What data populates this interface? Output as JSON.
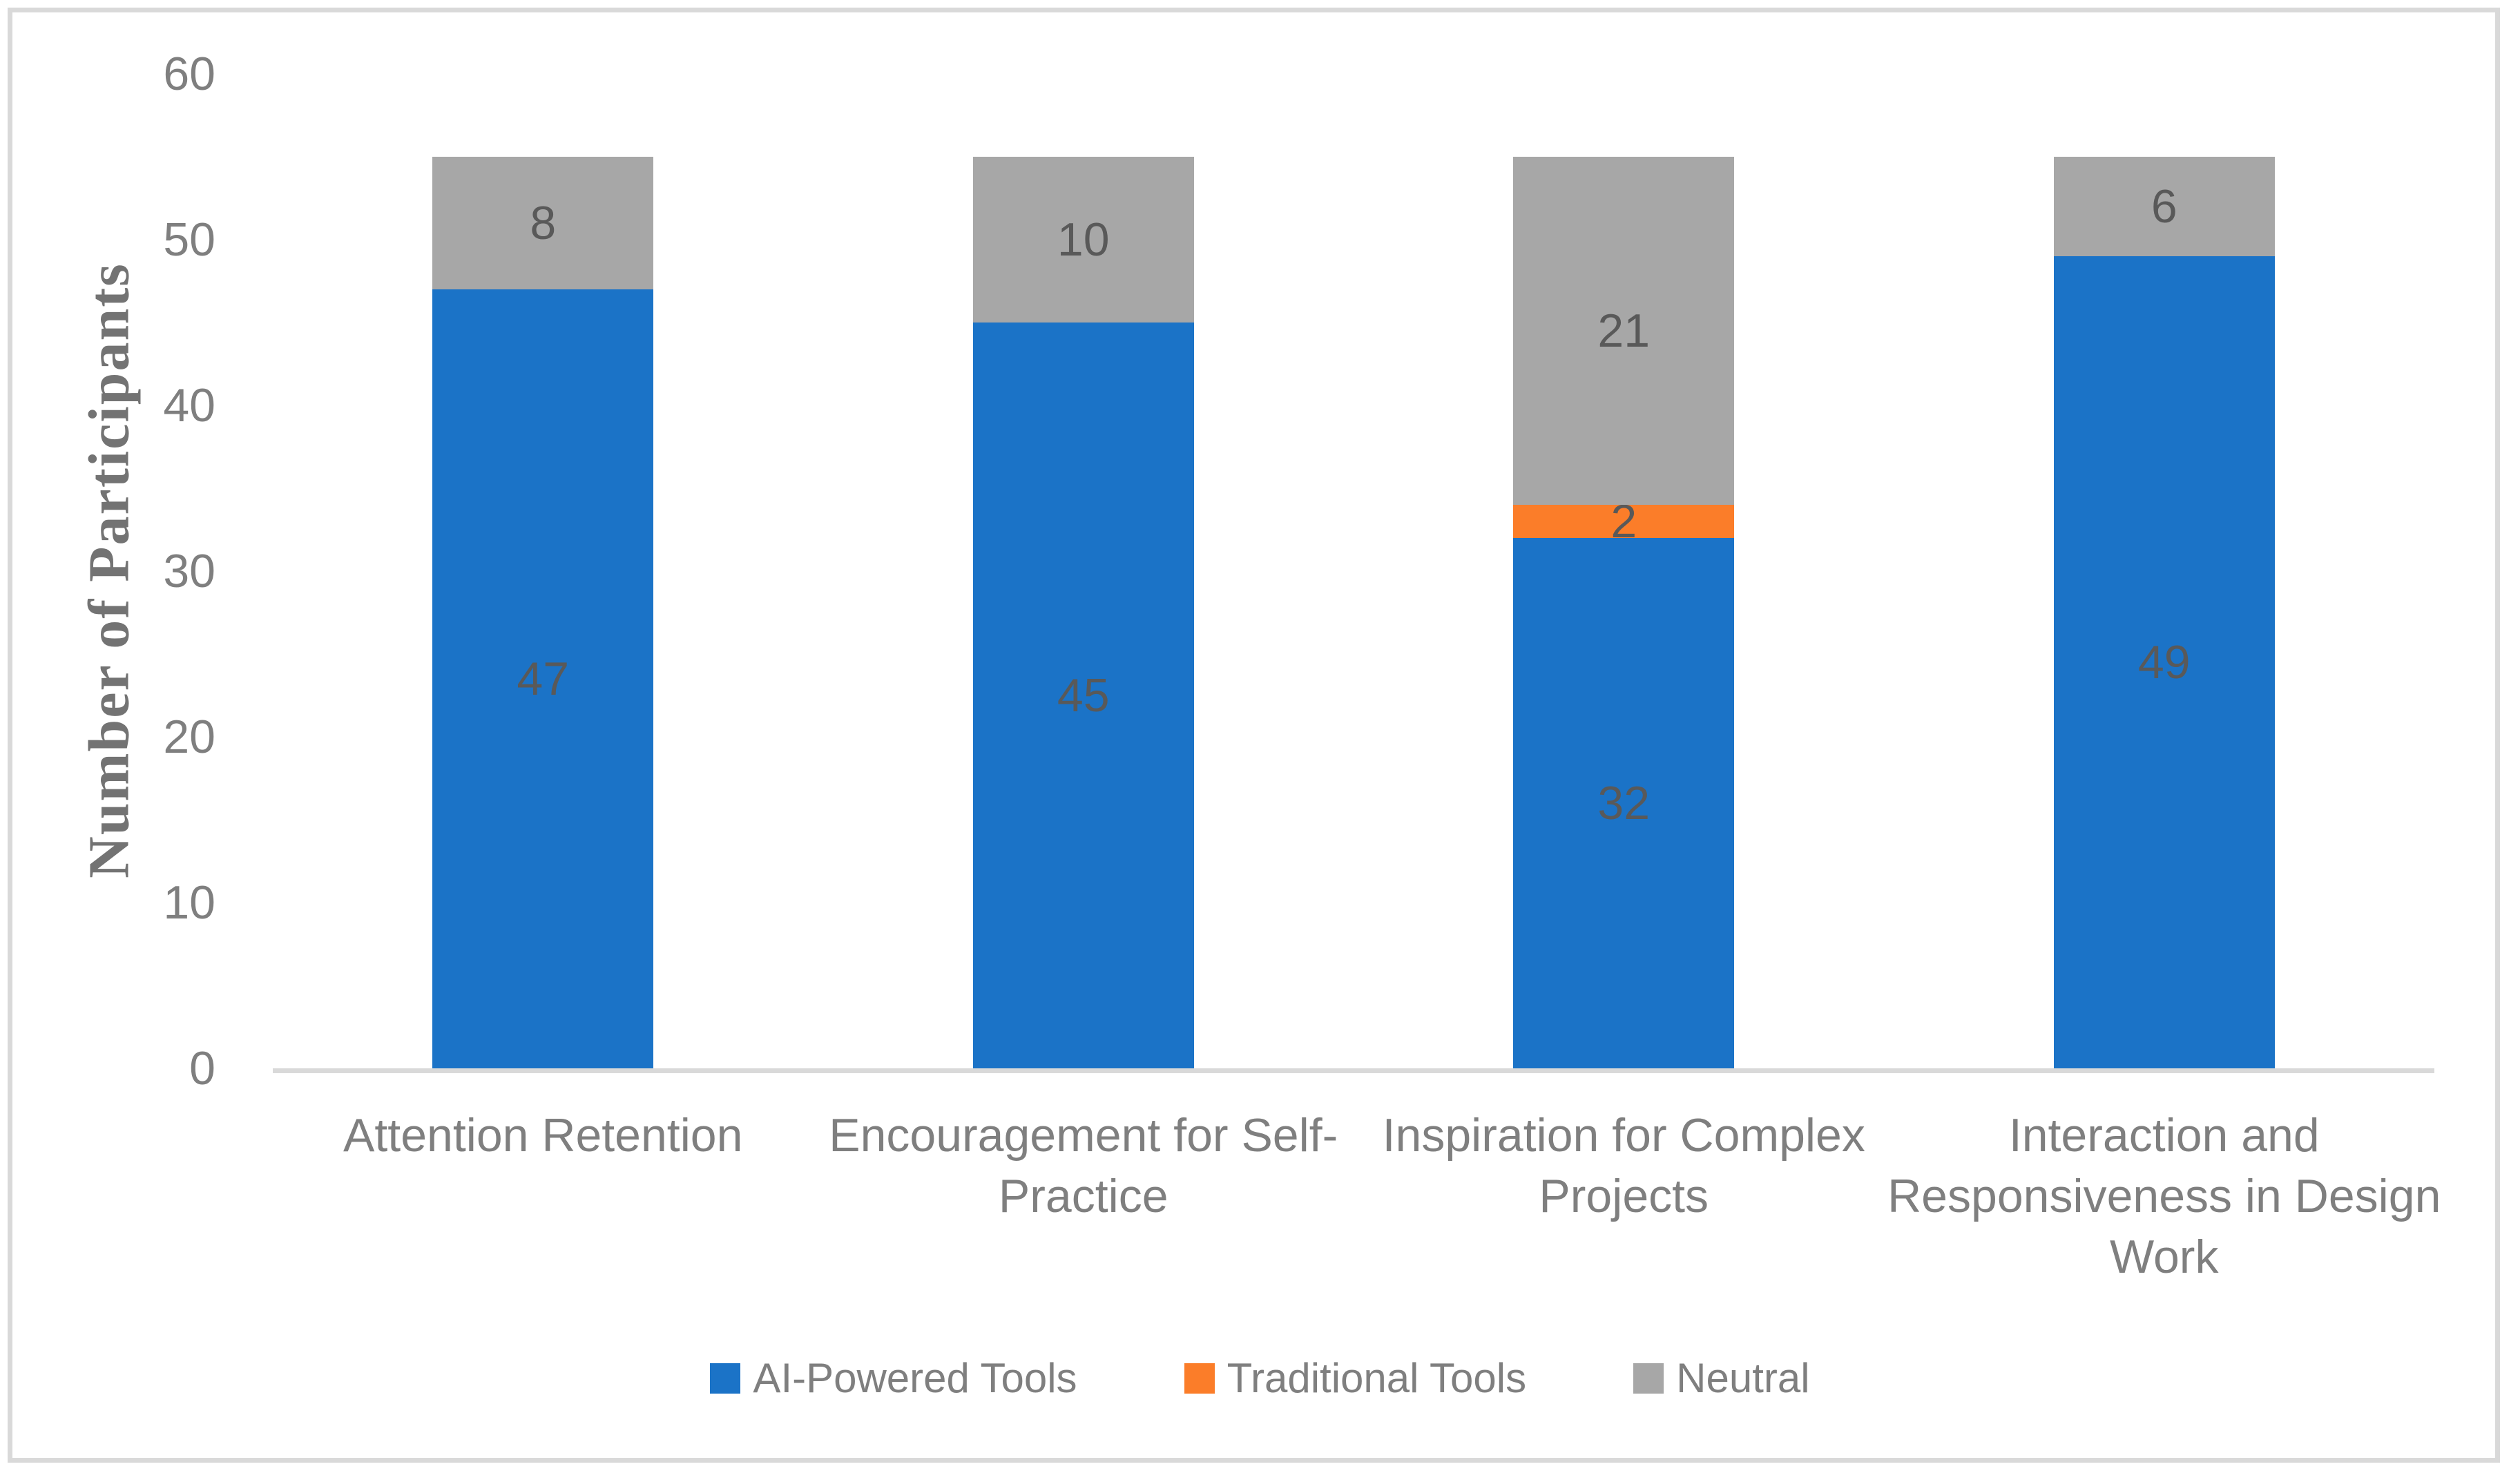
{
  "chart_data": {
    "type": "bar",
    "stacked": true,
    "title": "",
    "xlabel": "",
    "ylabel": "Number of Participants",
    "ylim": [
      0,
      60
    ],
    "yticks": [
      0,
      10,
      20,
      30,
      40,
      50,
      60
    ],
    "grid": false,
    "legend_position": "bottom",
    "data_labels": true,
    "categories": [
      "Attention Retention",
      "Encouragement for Self-Practice",
      "Inspiration for Complex Projects",
      "Interaction and Responsiveness in Design Work"
    ],
    "category_label_lines": [
      [
        "Attention Retention"
      ],
      [
        "Encouragement for Self-",
        "Practice"
      ],
      [
        "Inspiration for Complex",
        "Projects"
      ],
      [
        "Interaction and",
        "Responsiveness in Design",
        "Work"
      ]
    ],
    "series": [
      {
        "name": "AI-Powered Tools",
        "color": "#1B73C7",
        "values": [
          47,
          45,
          32,
          49
        ]
      },
      {
        "name": "Traditional Tools",
        "color": "#FB7D29",
        "values": [
          0,
          0,
          2,
          0
        ]
      },
      {
        "name": "Neutral",
        "color": "#A7A7A7",
        "values": [
          8,
          10,
          21,
          6
        ]
      }
    ],
    "totals": [
      55,
      55,
      55,
      55
    ]
  },
  "colors": {
    "background": "#FFFFFF",
    "border": "#D9D9D9",
    "axis_line": "#D9D9D9",
    "tick_text": "#7F7F7F",
    "category_text": "#7F7F7F",
    "legend_text": "#7F7F7F",
    "data_label_text": "#595959",
    "y_title_text": "#737373"
  }
}
